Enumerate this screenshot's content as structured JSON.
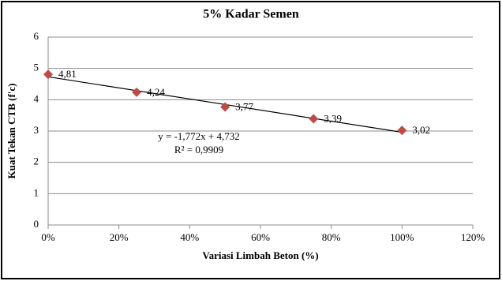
{
  "chart_data": {
    "type": "scatter",
    "title": "5% Kadar Semen",
    "x_label": "Variasi Limbah Beton (%)",
    "y_label": "Kuat Tekan CTB (f'c)",
    "x": [
      0,
      0.25,
      0.5,
      0.75,
      1
    ],
    "series": [
      {
        "color": "#be4b48",
        "values": [
          4.81,
          4.24,
          3.77,
          3.39,
          3.02
        ],
        "value_labels": [
          "4,81",
          "4,24",
          "3,77",
          "3,39",
          "3,02"
        ]
      }
    ],
    "trendline": {
      "equation": "y = -1,772x + 4,732",
      "r2_label": "R² = 0,9909",
      "slope": -1.772,
      "intercept": 4.732,
      "color": "#000000"
    },
    "xlim": [
      0,
      1.2
    ],
    "xticks": [
      {
        "value": 0,
        "label": "0%"
      },
      {
        "value": 0.2,
        "label": "20%"
      },
      {
        "value": 0.4,
        "label": "40%"
      },
      {
        "value": 0.6,
        "label": "60%"
      },
      {
        "value": 0.8,
        "label": "80%"
      },
      {
        "value": 1,
        "label": "100%"
      },
      {
        "value": 1.2,
        "label": "120%"
      }
    ],
    "ylim": [
      0,
      6
    ],
    "yticks": [
      0,
      1,
      2,
      3,
      4,
      5,
      6
    ],
    "grid": true
  }
}
